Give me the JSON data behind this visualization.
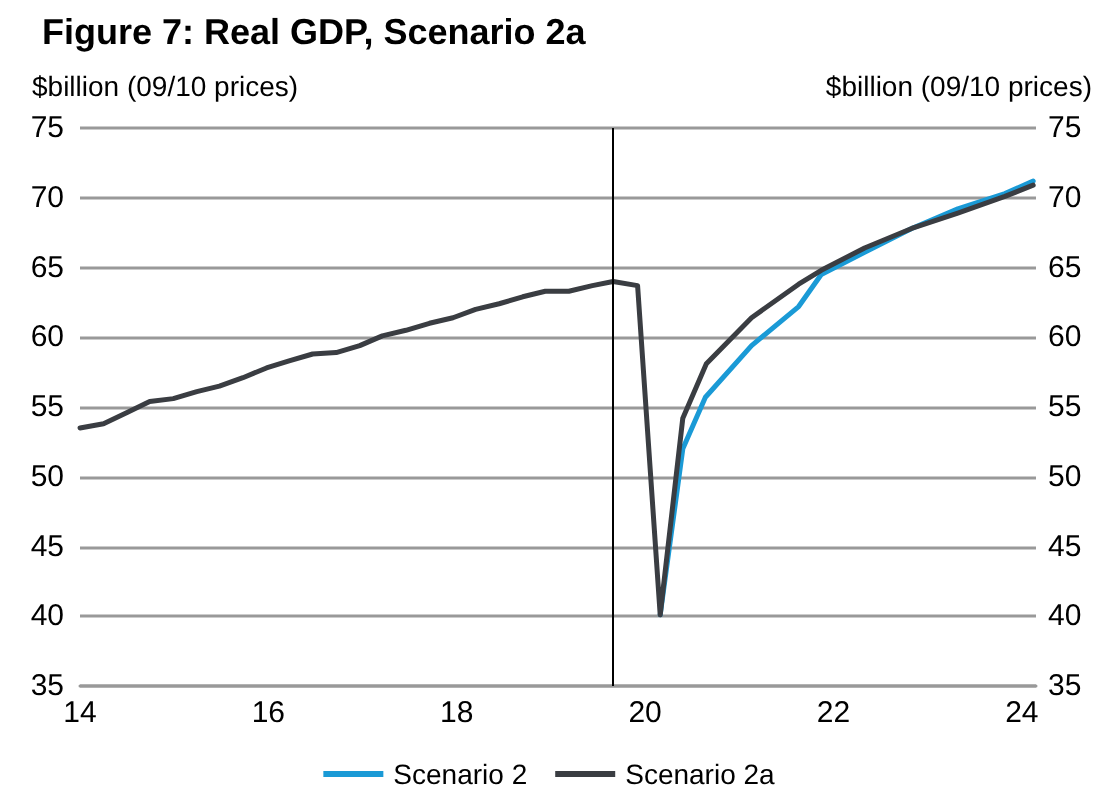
{
  "chart_data": {
    "type": "line",
    "title": "Figure 7: Real GDP, Scenario 2a",
    "ylabel": "$billion (09/10 prices)",
    "y2label": "$billion (09/10 prices)",
    "xlim": [
      14,
      24.15
    ],
    "xticks": [
      14,
      16,
      18,
      20,
      22,
      24
    ],
    "ylim": [
      35,
      75
    ],
    "yticks": [
      35,
      40,
      45,
      50,
      55,
      60,
      65,
      70,
      75
    ],
    "y2lim": [
      35,
      75
    ],
    "y2ticks": [
      35,
      40,
      45,
      50,
      55,
      60,
      65,
      70,
      75
    ],
    "grid": "y",
    "legend": "bottom",
    "marker": "none",
    "line_style": "solid",
    "ref_lines": [
      {
        "axis": "x",
        "value": 19.66,
        "color": "#000000"
      }
    ],
    "series": [
      {
        "name": "Scenario 2",
        "color": "#1a9ad6",
        "x": [
          20.16,
          20.4,
          20.64,
          21.13,
          21.63,
          21.87,
          22.33,
          22.83,
          23.32,
          23.82,
          24.12
        ],
        "values": [
          40.1,
          52.0,
          55.7,
          59.4,
          62.2,
          64.5,
          66.1,
          67.8,
          69.2,
          70.3,
          71.2
        ]
      },
      {
        "name": "Scenario 2a",
        "color": "#3a3d42",
        "x": [
          14.0,
          14.25,
          14.5,
          14.74,
          14.99,
          15.24,
          15.48,
          15.73,
          15.98,
          16.22,
          16.47,
          16.72,
          16.97,
          17.21,
          17.46,
          17.71,
          17.96,
          18.2,
          18.45,
          18.7,
          18.94,
          19.19,
          19.44,
          19.66,
          19.92,
          20.16,
          20.4,
          20.65,
          21.13,
          21.63,
          21.87,
          22.33,
          22.83,
          23.32,
          23.82,
          24.12
        ],
        "values": [
          53.5,
          53.8,
          54.6,
          55.4,
          55.6,
          56.1,
          56.5,
          57.1,
          57.8,
          58.3,
          58.8,
          58.9,
          59.4,
          60.1,
          60.5,
          61.0,
          61.4,
          62.0,
          62.4,
          62.9,
          63.3,
          63.3,
          63.7,
          64.0,
          63.7,
          40.1,
          54.2,
          58.1,
          61.4,
          63.8,
          64.8,
          66.4,
          67.8,
          68.9,
          70.1,
          70.9
        ]
      }
    ]
  }
}
